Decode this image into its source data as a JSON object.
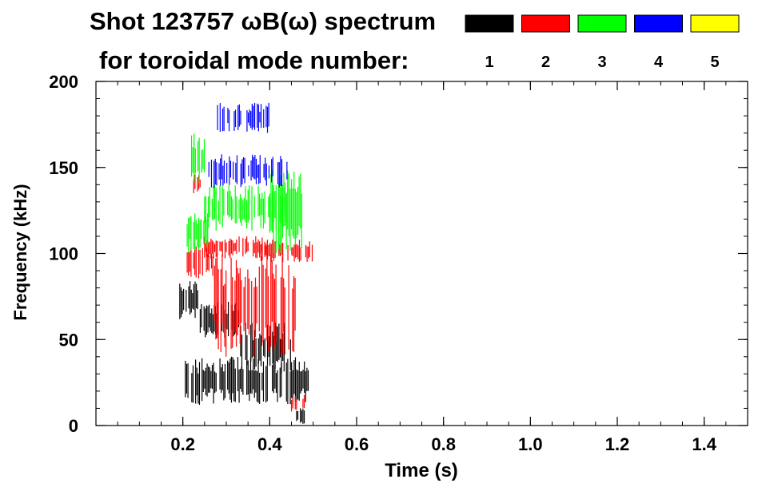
{
  "title_line1": "Shot 123757 ωB(ω) spectrum",
  "title_line2": "for toroidal mode number:",
  "legend": [
    {
      "mode": "1",
      "color": "#000000"
    },
    {
      "mode": "2",
      "color": "#ff0000"
    },
    {
      "mode": "3",
      "color": "#00ff00"
    },
    {
      "mode": "4",
      "color": "#0000ff"
    },
    {
      "mode": "5",
      "color": "#ffff00"
    }
  ],
  "chart_data": {
    "type": "heatmap",
    "title": "Shot 123757 ωB(ω) spectrum for toroidal mode number:",
    "xlabel": "Time (s)",
    "ylabel": "Frequency (kHz)",
    "xlim": [
      0.0,
      1.5
    ],
    "ylim": [
      0,
      200
    ],
    "xticks": [
      0.2,
      0.4,
      0.6,
      0.8,
      1.0,
      1.2,
      1.4
    ],
    "xtick_labels": [
      "0.2",
      "0.4",
      "0.6",
      "0.8",
      "1.0",
      "1.2",
      "1.4"
    ],
    "yticks": [
      0,
      50,
      100,
      150,
      200
    ],
    "ytick_labels": [
      "0",
      "50",
      "100",
      "150",
      "200"
    ],
    "series": [
      {
        "name": "1",
        "color": "#000000",
        "regions": [
          {
            "t": [
              0.19,
              0.24
            ],
            "f": [
              60,
              85
            ]
          },
          {
            "t": [
              0.24,
              0.33
            ],
            "f": [
              50,
              72
            ]
          },
          {
            "t": [
              0.33,
              0.45
            ],
            "f": [
              30,
              60
            ]
          },
          {
            "t": [
              0.2,
              0.49
            ],
            "f": [
              12,
              40
            ]
          },
          {
            "t": [
              0.45,
              0.48
            ],
            "f": [
              0,
              12
            ]
          }
        ]
      },
      {
        "name": "2",
        "color": "#ff0000",
        "regions": [
          {
            "t": [
              0.21,
              0.27
            ],
            "f": [
              85,
              105
            ]
          },
          {
            "t": [
              0.25,
              0.4
            ],
            "f": [
              97,
              110
            ]
          },
          {
            "t": [
              0.27,
              0.46
            ],
            "f": [
              40,
              100
            ]
          },
          {
            "t": [
              0.38,
              0.5
            ],
            "f": [
              95,
              108
            ]
          },
          {
            "t": [
              0.225,
              0.24
            ],
            "f": [
              135,
              147
            ]
          },
          {
            "t": [
              0.45,
              0.48
            ],
            "f": [
              8,
              18
            ]
          }
        ]
      },
      {
        "name": "3",
        "color": "#00ff00",
        "regions": [
          {
            "t": [
              0.22,
              0.25
            ],
            "f": [
              140,
              170
            ]
          },
          {
            "t": [
              0.25,
              0.44
            ],
            "f": [
              113,
              140
            ]
          },
          {
            "t": [
              0.21,
              0.26
            ],
            "f": [
              100,
              125
            ]
          },
          {
            "t": [
              0.4,
              0.48
            ],
            "f": [
              100,
              150
            ]
          }
        ]
      },
      {
        "name": "4",
        "color": "#0000ff",
        "regions": [
          {
            "t": [
              0.26,
              0.44
            ],
            "f": [
              138,
              158
            ]
          },
          {
            "t": [
              0.28,
              0.4
            ],
            "f": [
              170,
              188
            ]
          }
        ]
      },
      {
        "name": "5",
        "color": "#ffff00",
        "regions": []
      }
    ],
    "grid": false,
    "legend_position": "top-right"
  }
}
